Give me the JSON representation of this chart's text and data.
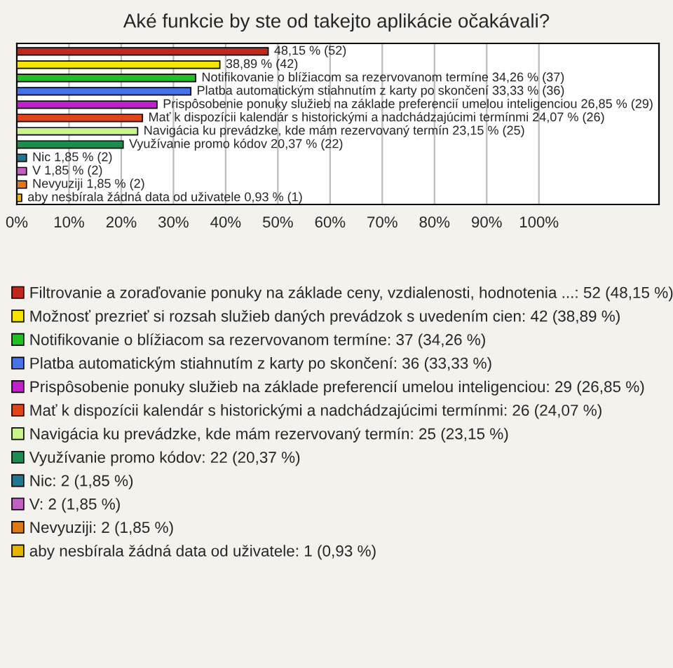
{
  "chart_data": {
    "type": "bar",
    "orientation": "horizontal",
    "title": "Aké funkcie by ste od takejto aplikácie očakávali?",
    "categories": [
      null,
      null,
      null,
      null,
      null,
      null,
      null,
      null,
      null,
      null,
      null,
      null
    ],
    "series": [
      {
        "name": "Filtrovanie a zoraďovanie ponuky na základe ceny, vzdialenosti, hodnotenia ...: 52 (48,15 %)",
        "color": "#c0281c",
        "values": [
          48.15,
          null,
          null,
          null,
          null,
          null,
          null,
          null,
          null,
          null,
          null,
          null
        ],
        "value_labels": [
          "48,15 % (52)",
          null,
          null,
          null,
          null,
          null,
          null,
          null,
          null,
          null,
          null,
          null
        ]
      },
      {
        "name": "Možnosť prezrieť si rozsah služieb daných prevádzok s uvedením cien: 42 (38,89 %)",
        "color": "#f5e400",
        "values": [
          null,
          38.89,
          null,
          null,
          null,
          null,
          null,
          null,
          null,
          null,
          null,
          null
        ],
        "value_labels": [
          null,
          "38,89 % (42)",
          null,
          null,
          null,
          null,
          null,
          null,
          null,
          null,
          null,
          null
        ]
      },
      {
        "name": "Notifikovanie o blížiacom sa rezervovanom termíne: 37 (34,26 %)",
        "color": "#22c022",
        "values": [
          null,
          null,
          34.26,
          null,
          null,
          null,
          null,
          null,
          null,
          null,
          null,
          null
        ],
        "value_labels": [
          null,
          null,
          "Notifikovanie o blížiacom sa rezervovanom termíne 34,26 % (37)",
          null,
          null,
          null,
          null,
          null,
          null,
          null,
          null,
          null
        ]
      },
      {
        "name": "Platba automatickým stiahnutím z karty po skončení: 36 (33,33 %)",
        "color": "#4472e8",
        "values": [
          null,
          null,
          null,
          33.33,
          null,
          null,
          null,
          null,
          null,
          null,
          null,
          null
        ],
        "value_labels": [
          null,
          null,
          null,
          "Platba automatickým stiahnutím z karty po skončení 33,33 % (36)",
          null,
          null,
          null,
          null,
          null,
          null,
          null,
          null
        ]
      },
      {
        "name": "Prispôsobenie ponuky služieb na základe preferencií umelou inteligenciou: 29 (26,85 %)",
        "color": "#c020c8",
        "values": [
          null,
          null,
          null,
          null,
          26.85,
          null,
          null,
          null,
          null,
          null,
          null,
          null
        ],
        "value_labels": [
          null,
          null,
          null,
          null,
          "Prispôsobenie ponuky služieb na základe preferencií umelou inteligenciou 26,85 % (29)",
          null,
          null,
          null,
          null,
          null,
          null,
          null
        ]
      },
      {
        "name": "Mať k dispozícii kalendár s historickými a nadchádzajúcimi termínmi: 26 (24,07 %)",
        "color": "#e04418",
        "values": [
          null,
          null,
          null,
          null,
          null,
          24.07,
          null,
          null,
          null,
          null,
          null,
          null
        ],
        "value_labels": [
          null,
          null,
          null,
          null,
          null,
          "Mať k dispozícii kalendár s historickými a nadchádzajúcimi termínmi 24,07 % (26)",
          null,
          null,
          null,
          null,
          null,
          null
        ]
      },
      {
        "name": "Navigácia ku prevádzke, kde mám rezervovaný termín: 25 (23,15 %)",
        "color": "#c8f48c",
        "values": [
          null,
          null,
          null,
          null,
          null,
          null,
          23.15,
          null,
          null,
          null,
          null,
          null
        ],
        "value_labels": [
          null,
          null,
          null,
          null,
          null,
          null,
          "Navigácia ku prevádzke, kde mám rezervovaný termín 23,15 % (25)",
          null,
          null,
          null,
          null,
          null
        ]
      },
      {
        "name": "Využívanie promo kódov: 22 (20,37 %)",
        "color": "#1e8c50",
        "values": [
          null,
          null,
          null,
          null,
          null,
          null,
          null,
          20.37,
          null,
          null,
          null,
          null
        ],
        "value_labels": [
          null,
          null,
          null,
          null,
          null,
          null,
          null,
          "Využívanie promo kódov 20,37 % (22)",
          null,
          null,
          null,
          null
        ]
      },
      {
        "name": "Nic: 2 (1,85 %)",
        "color": "#1e7890",
        "values": [
          null,
          null,
          null,
          null,
          null,
          null,
          null,
          null,
          1.85,
          null,
          null,
          null
        ],
        "value_labels": [
          null,
          null,
          null,
          null,
          null,
          null,
          null,
          null,
          "Nic 1,85 % (2)",
          null,
          null,
          null
        ]
      },
      {
        "name": "V: 2 (1,85 %)",
        "color": "#c060c0",
        "values": [
          null,
          null,
          null,
          null,
          null,
          null,
          null,
          null,
          null,
          1.85,
          null,
          null
        ],
        "value_labels": [
          null,
          null,
          null,
          null,
          null,
          null,
          null,
          null,
          null,
          "V 1,85 % (2)",
          null,
          null
        ]
      },
      {
        "name": "Nevyuziji: 2 (1,85 %)",
        "color": "#e07818",
        "values": [
          null,
          null,
          null,
          null,
          null,
          null,
          null,
          null,
          null,
          null,
          1.85,
          null
        ],
        "value_labels": [
          null,
          null,
          null,
          null,
          null,
          null,
          null,
          null,
          null,
          null,
          "Nevyuziji 1,85 % (2)",
          null
        ]
      },
      {
        "name": "aby nesbírala žádná data od uživatele: 1 (0,93 %)",
        "color": "#e8b400",
        "values": [
          null,
          null,
          null,
          null,
          null,
          null,
          null,
          null,
          null,
          null,
          null,
          0.93
        ],
        "value_labels": [
          null,
          null,
          null,
          null,
          null,
          null,
          null,
          null,
          null,
          null,
          null,
          "aby nesbírala žádná data od uživatele 0,93 % (1)"
        ]
      }
    ],
    "xlim": [
      0,
      123
    ],
    "xticks": [
      {
        "value": 0,
        "label": "0%"
      },
      {
        "value": 10,
        "label": "10%"
      },
      {
        "value": 20,
        "label": "20%"
      },
      {
        "value": 30,
        "label": "30%"
      },
      {
        "value": 40,
        "label": "40%"
      },
      {
        "value": 50,
        "label": "50%"
      },
      {
        "value": 60,
        "label": "60%"
      },
      {
        "value": 70,
        "label": "70%"
      },
      {
        "value": 80,
        "label": "80%"
      },
      {
        "value": 90,
        "label": "90%"
      },
      {
        "value": 100,
        "label": "100%"
      }
    ],
    "grid": "x",
    "legend": "bottom"
  }
}
